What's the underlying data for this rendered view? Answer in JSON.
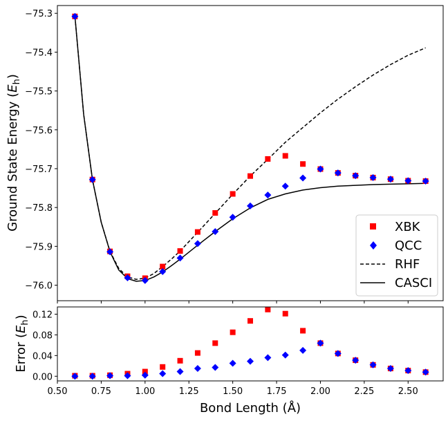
{
  "colors": {
    "xbk": "#ff0000",
    "qcc": "#0000ff",
    "line": "#000000"
  },
  "chart_data": [
    {
      "type": "line",
      "panel": "energy",
      "xlabel": "Bond Length (Å)",
      "ylabel_main": "Ground State Energy (",
      "ylabel_sym": "E",
      "ylabel_sub": "h",
      "ylabel_close": ")",
      "xlim": [
        0.5,
        2.7
      ],
      "ylim": [
        -76.04,
        -75.28
      ],
      "yticks": [
        -76.0,
        -75.9,
        -75.8,
        -75.7,
        -75.6,
        -75.5,
        -75.4,
        -75.3
      ],
      "ytick_labels": [
        "−76.0",
        "−75.9",
        "−75.8",
        "−75.7",
        "−75.6",
        "−75.5",
        "−75.4",
        "−75.3"
      ],
      "legend_position": "lower-right",
      "series": [
        {
          "name": "XBK",
          "kind": "scatter",
          "marker": "square",
          "x": [
            0.6,
            0.7,
            0.8,
            0.9,
            1.0,
            1.1,
            1.2,
            1.3,
            1.4,
            1.5,
            1.6,
            1.7,
            1.8,
            1.9,
            2.0,
            2.1,
            2.2,
            2.3,
            2.4,
            2.5,
            2.6
          ],
          "y": [
            -75.308,
            -75.728,
            -75.913,
            -75.977,
            -75.982,
            -75.952,
            -75.912,
            -75.863,
            -75.814,
            -75.765,
            -75.719,
            -75.675,
            -75.667,
            -75.688,
            -75.701,
            -75.711,
            -75.718,
            -75.723,
            -75.727,
            -75.731,
            -75.732
          ]
        },
        {
          "name": "QCC",
          "kind": "scatter",
          "marker": "diamond",
          "x": [
            0.6,
            0.7,
            0.8,
            0.9,
            1.0,
            1.1,
            1.2,
            1.3,
            1.4,
            1.5,
            1.6,
            1.7,
            1.8,
            1.9,
            2.0,
            2.1,
            2.2,
            2.3,
            2.4,
            2.5,
            2.6
          ],
          "y": [
            -75.308,
            -75.728,
            -75.914,
            -75.981,
            -75.988,
            -75.965,
            -75.93,
            -75.893,
            -75.862,
            -75.825,
            -75.796,
            -75.768,
            -75.745,
            -75.724,
            -75.701,
            -75.711,
            -75.718,
            -75.723,
            -75.727,
            -75.731,
            -75.732
          ]
        },
        {
          "name": "RHF",
          "kind": "line",
          "dash": "dashed",
          "x": [
            0.6,
            0.65,
            0.7,
            0.75,
            0.8,
            0.85,
            0.9,
            0.95,
            1.0,
            1.05,
            1.1,
            1.15,
            1.2,
            1.3,
            1.4,
            1.5,
            1.6,
            1.7,
            1.8,
            1.9,
            2.0,
            2.1,
            2.2,
            2.3,
            2.4,
            2.5,
            2.6
          ],
          "y": [
            -75.308,
            -75.56,
            -75.728,
            -75.838,
            -75.913,
            -75.957,
            -75.979,
            -75.985,
            -75.982,
            -75.97,
            -75.952,
            -75.933,
            -75.912,
            -75.864,
            -75.815,
            -75.766,
            -75.719,
            -75.676,
            -75.632,
            -75.594,
            -75.556,
            -75.521,
            -75.489,
            -75.459,
            -75.432,
            -75.408,
            -75.389
          ]
        },
        {
          "name": "CASCI",
          "kind": "line",
          "dash": "solid",
          "x": [
            0.6,
            0.65,
            0.7,
            0.75,
            0.8,
            0.85,
            0.9,
            0.95,
            1.0,
            1.05,
            1.1,
            1.15,
            1.2,
            1.3,
            1.4,
            1.5,
            1.6,
            1.7,
            1.8,
            1.9,
            2.0,
            2.1,
            2.2,
            2.3,
            2.4,
            2.5,
            2.6
          ],
          "y": [
            -75.308,
            -75.56,
            -75.728,
            -75.838,
            -75.914,
            -75.961,
            -75.983,
            -75.99,
            -75.988,
            -75.979,
            -75.966,
            -75.95,
            -75.933,
            -75.897,
            -75.862,
            -75.829,
            -75.801,
            -75.779,
            -75.765,
            -75.755,
            -75.749,
            -75.745,
            -75.743,
            -75.741,
            -75.74,
            -75.739,
            -75.738
          ]
        }
      ]
    },
    {
      "type": "scatter",
      "panel": "error",
      "xlabel": "Bond Length (Å)",
      "ylabel_main": "Error (",
      "ylabel_sym": "E",
      "ylabel_sub": "h",
      "ylabel_close": ")",
      "xlim": [
        0.5,
        2.7
      ],
      "ylim": [
        -0.009,
        0.134
      ],
      "xticks": [
        0.5,
        0.75,
        1.0,
        1.25,
        1.5,
        1.75,
        2.0,
        2.25,
        2.5
      ],
      "xtick_labels": [
        "0.50",
        "0.75",
        "1.00",
        "1.25",
        "1.50",
        "1.75",
        "2.00",
        "2.25",
        "2.50"
      ],
      "yticks": [
        0.0,
        0.04,
        0.08,
        0.12
      ],
      "ytick_labels": [
        "0.00",
        "0.04",
        "0.08",
        "0.12"
      ],
      "series": [
        {
          "name": "XBK",
          "marker": "square",
          "x": [
            0.6,
            0.7,
            0.8,
            0.9,
            1.0,
            1.1,
            1.2,
            1.3,
            1.4,
            1.5,
            1.6,
            1.7,
            1.8,
            1.9,
            2.0,
            2.1,
            2.2,
            2.3,
            2.4,
            2.5,
            2.6
          ],
          "y": [
            0.001,
            0.001,
            0.002,
            0.005,
            0.009,
            0.018,
            0.03,
            0.045,
            0.064,
            0.085,
            0.107,
            0.129,
            0.121,
            0.088,
            0.064,
            0.044,
            0.031,
            0.022,
            0.015,
            0.011,
            0.008
          ]
        },
        {
          "name": "QCC",
          "marker": "diamond",
          "x": [
            0.6,
            0.7,
            0.8,
            0.9,
            1.0,
            1.1,
            1.2,
            1.3,
            1.4,
            1.5,
            1.6,
            1.7,
            1.8,
            1.9,
            2.0,
            2.1,
            2.2,
            2.3,
            2.4,
            2.5,
            2.6
          ],
          "y": [
            0.0,
            0.0,
            0.001,
            0.001,
            0.002,
            0.005,
            0.009,
            0.015,
            0.017,
            0.025,
            0.029,
            0.036,
            0.041,
            0.05,
            0.064,
            0.044,
            0.031,
            0.022,
            0.015,
            0.011,
            0.008
          ]
        }
      ]
    }
  ]
}
